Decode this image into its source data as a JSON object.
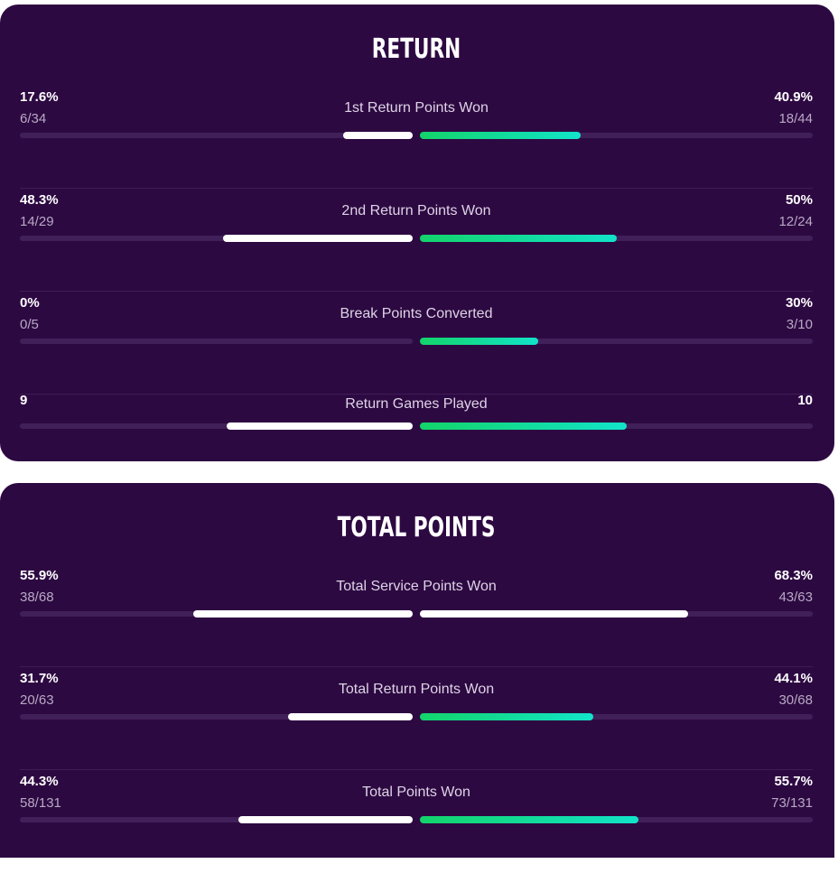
{
  "sections": [
    {
      "title": "RETURN",
      "stats": [
        {
          "label": "1st Return Points Won",
          "left_main": "17.6%",
          "left_sub": "6/34",
          "right_main": "40.9%",
          "right_sub": "18/44",
          "left_fraction": 0.176,
          "right_fraction": 0.409
        },
        {
          "label": "2nd Return Points Won",
          "left_main": "48.3%",
          "left_sub": "14/29",
          "right_main": "50%",
          "right_sub": "12/24",
          "left_fraction": 0.483,
          "right_fraction": 0.5
        },
        {
          "label": "Break Points Converted",
          "left_main": "0%",
          "left_sub": "0/5",
          "right_main": "30%",
          "right_sub": "3/10",
          "left_fraction": 0.0,
          "right_fraction": 0.3
        },
        {
          "label": "Return Games Played",
          "left_main": "9",
          "left_sub": "",
          "right_main": "10",
          "right_sub": "",
          "left_fraction": 0.4737,
          "right_fraction": 0.5263
        }
      ]
    },
    {
      "title": "TOTAL POINTS",
      "stats": [
        {
          "label": "Total Service Points Won",
          "left_main": "55.9%",
          "left_sub": "38/68",
          "right_main": "68.3%",
          "right_sub": "43/63",
          "left_fraction": 0.559,
          "right_fraction": 0.683,
          "right_color": "white"
        },
        {
          "label": "Total Return Points Won",
          "left_main": "31.7%",
          "left_sub": "20/63",
          "right_main": "44.1%",
          "right_sub": "30/68",
          "left_fraction": 0.317,
          "right_fraction": 0.441
        },
        {
          "label": "Total Points Won",
          "left_main": "44.3%",
          "left_sub": "58/131",
          "right_main": "55.7%",
          "right_sub": "73/131",
          "left_fraction": 0.443,
          "right_fraction": 0.557
        }
      ]
    }
  ],
  "colors": {
    "card_bg": "#2d0942",
    "track": "#41205a",
    "left_bar": "#ffffff",
    "right_bar_start": "#13d46a",
    "right_bar_end": "#12e3c9"
  }
}
